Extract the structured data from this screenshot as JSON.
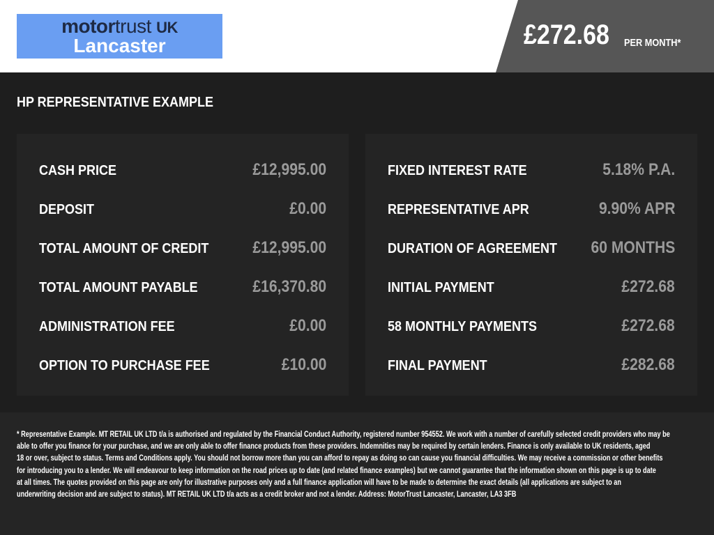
{
  "header": {
    "logo": {
      "line1_a": "motor",
      "line1_b": "trust",
      "line1_c": "UK",
      "line2": "Lancaster"
    },
    "monthly_price": "£272.68",
    "per_month_label": "PER MONTH*"
  },
  "section_title": "HP REPRESENTATIVE EXAMPLE",
  "left_panel": [
    {
      "label": "CASH PRICE",
      "value": "£12,995.00"
    },
    {
      "label": "DEPOSIT",
      "value": "£0.00"
    },
    {
      "label": "TOTAL AMOUNT OF CREDIT",
      "value": "£12,995.00"
    },
    {
      "label": "TOTAL AMOUNT PAYABLE",
      "value": "£16,370.80"
    },
    {
      "label": "ADMINISTRATION FEE",
      "value": "£0.00"
    },
    {
      "label": "OPTION TO PURCHASE FEE",
      "value": "£10.00"
    }
  ],
  "right_panel": [
    {
      "label": "FIXED INTEREST RATE",
      "value": "5.18% P.A."
    },
    {
      "label": "REPRESENTATIVE APR",
      "value": "9.90% APR"
    },
    {
      "label": "DURATION OF AGREEMENT",
      "value": "60 MONTHS"
    },
    {
      "label": "INITIAL PAYMENT",
      "value": "£272.68"
    },
    {
      "label": "58 MONTHLY PAYMENTS",
      "value": "£272.68"
    },
    {
      "label": "FINAL PAYMENT",
      "value": "£282.68"
    }
  ],
  "disclaimer_lines": [
    "* Representative Example. MT RETAIL UK LTD t/a is authorised and regulated by the Financial Conduct Authority, registered number 954552. We work with a number of carefully selected credit providers who may be",
    "able to offer you finance for your purchase, and we are only able to offer finance products from these providers. Indemnities may be required by certain lenders. Finance is only available to UK residents, aged",
    "18 or over, subject to status. Terms and Conditions apply. You should not borrow more than you can afford to repay as doing so can cause you financial difficulties. We may receive a commission or other benefits",
    "for introducing you to a lender. We will endeavour to keep information on the road prices up to date (and related finance examples) but we cannot guarantee that the information shown on this page is up to date",
    "at all times. The quotes provided on this page are only for illustrative purposes only and a full finance application will have to be made to determine the exact details (all applications are subject to an",
    "underwriting decision and are subject to status). MT RETAIL UK LTD t/a acts as a credit broker and not a lender. Address: MotorTrust Lancaster, Lancaster, LA3 3FB"
  ],
  "colors": {
    "logo_bg": "#6a9ef2",
    "price_bg": "#565656",
    "page_bg": "#1e1e1e",
    "value_text": "#9a9a9a"
  }
}
